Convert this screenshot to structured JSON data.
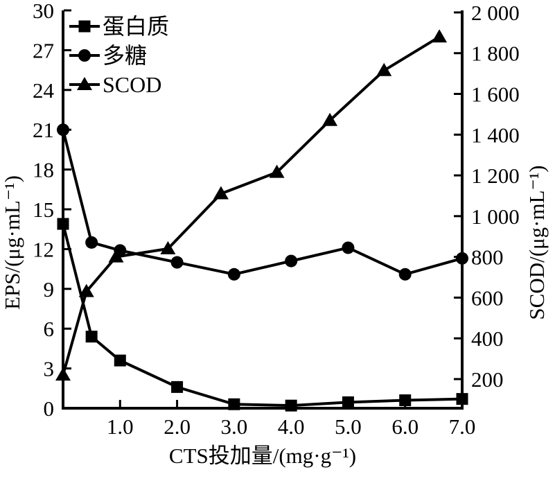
{
  "colors": {
    "foreground": "#000000",
    "background": "#ffffff"
  },
  "chart_data": {
    "type": "line",
    "title": "",
    "xlabel": "CTS投加量/(mg·g⁻¹)",
    "ylabel_left": "EPS/(μg·mL⁻¹)",
    "ylabel_right": "SCOD/(μg·mL⁻¹)",
    "grid": false,
    "legend_position": "top-left-inside",
    "xlim": [
      0,
      7
    ],
    "ylim_left": [
      0,
      30
    ],
    "right_axis_edge_values": [
      57,
      2010
    ],
    "x_tick_values": [
      1,
      2,
      3,
      4,
      5,
      6,
      7
    ],
    "x_tick_labels": [
      "1.0",
      "2.0",
      "3.0",
      "4.0",
      "5.0",
      "6.0",
      "7.0"
    ],
    "left_tick_values": [
      0,
      3,
      6,
      9,
      12,
      15,
      18,
      21,
      24,
      27,
      30
    ],
    "left_tick_labels": [
      "0",
      "3",
      "6",
      "9",
      "12",
      "15",
      "18",
      "21",
      "24",
      "27",
      "30"
    ],
    "right_tick_values": [
      200,
      400,
      600,
      800,
      1000,
      1200,
      1400,
      1600,
      1800,
      2000
    ],
    "right_tick_labels": [
      "200",
      "400",
      "600",
      "800",
      "1 000",
      "1 200",
      "1 400",
      "1 600",
      "1 800",
      "2 000"
    ],
    "series": [
      {
        "name": "蛋白质",
        "marker": "square",
        "axis": "left",
        "x": [
          0,
          0.5,
          1.0,
          2.0,
          3.0,
          4.0,
          5.0,
          6.0,
          7.0
        ],
        "y": [
          13.9,
          5.4,
          3.6,
          1.6,
          0.3,
          0.2,
          0.45,
          0.6,
          0.7
        ]
      },
      {
        "name": "多糖",
        "marker": "circle",
        "axis": "left",
        "x": [
          0,
          0.5,
          1.0,
          2.0,
          3.0,
          4.0,
          5.0,
          6.0,
          7.0
        ],
        "y": [
          21.0,
          12.5,
          11.9,
          11.0,
          10.1,
          11.1,
          12.1,
          10.1,
          11.3
        ]
      },
      {
        "name": "SCOD",
        "marker": "triangle",
        "axis": "right",
        "x": [
          0,
          0.41,
          0.93,
          1.84,
          2.77,
          3.75,
          4.68,
          5.63,
          6.6
        ],
        "y": [
          220,
          630,
          800,
          840,
          1110,
          1215,
          1470,
          1715,
          1880
        ]
      }
    ]
  }
}
